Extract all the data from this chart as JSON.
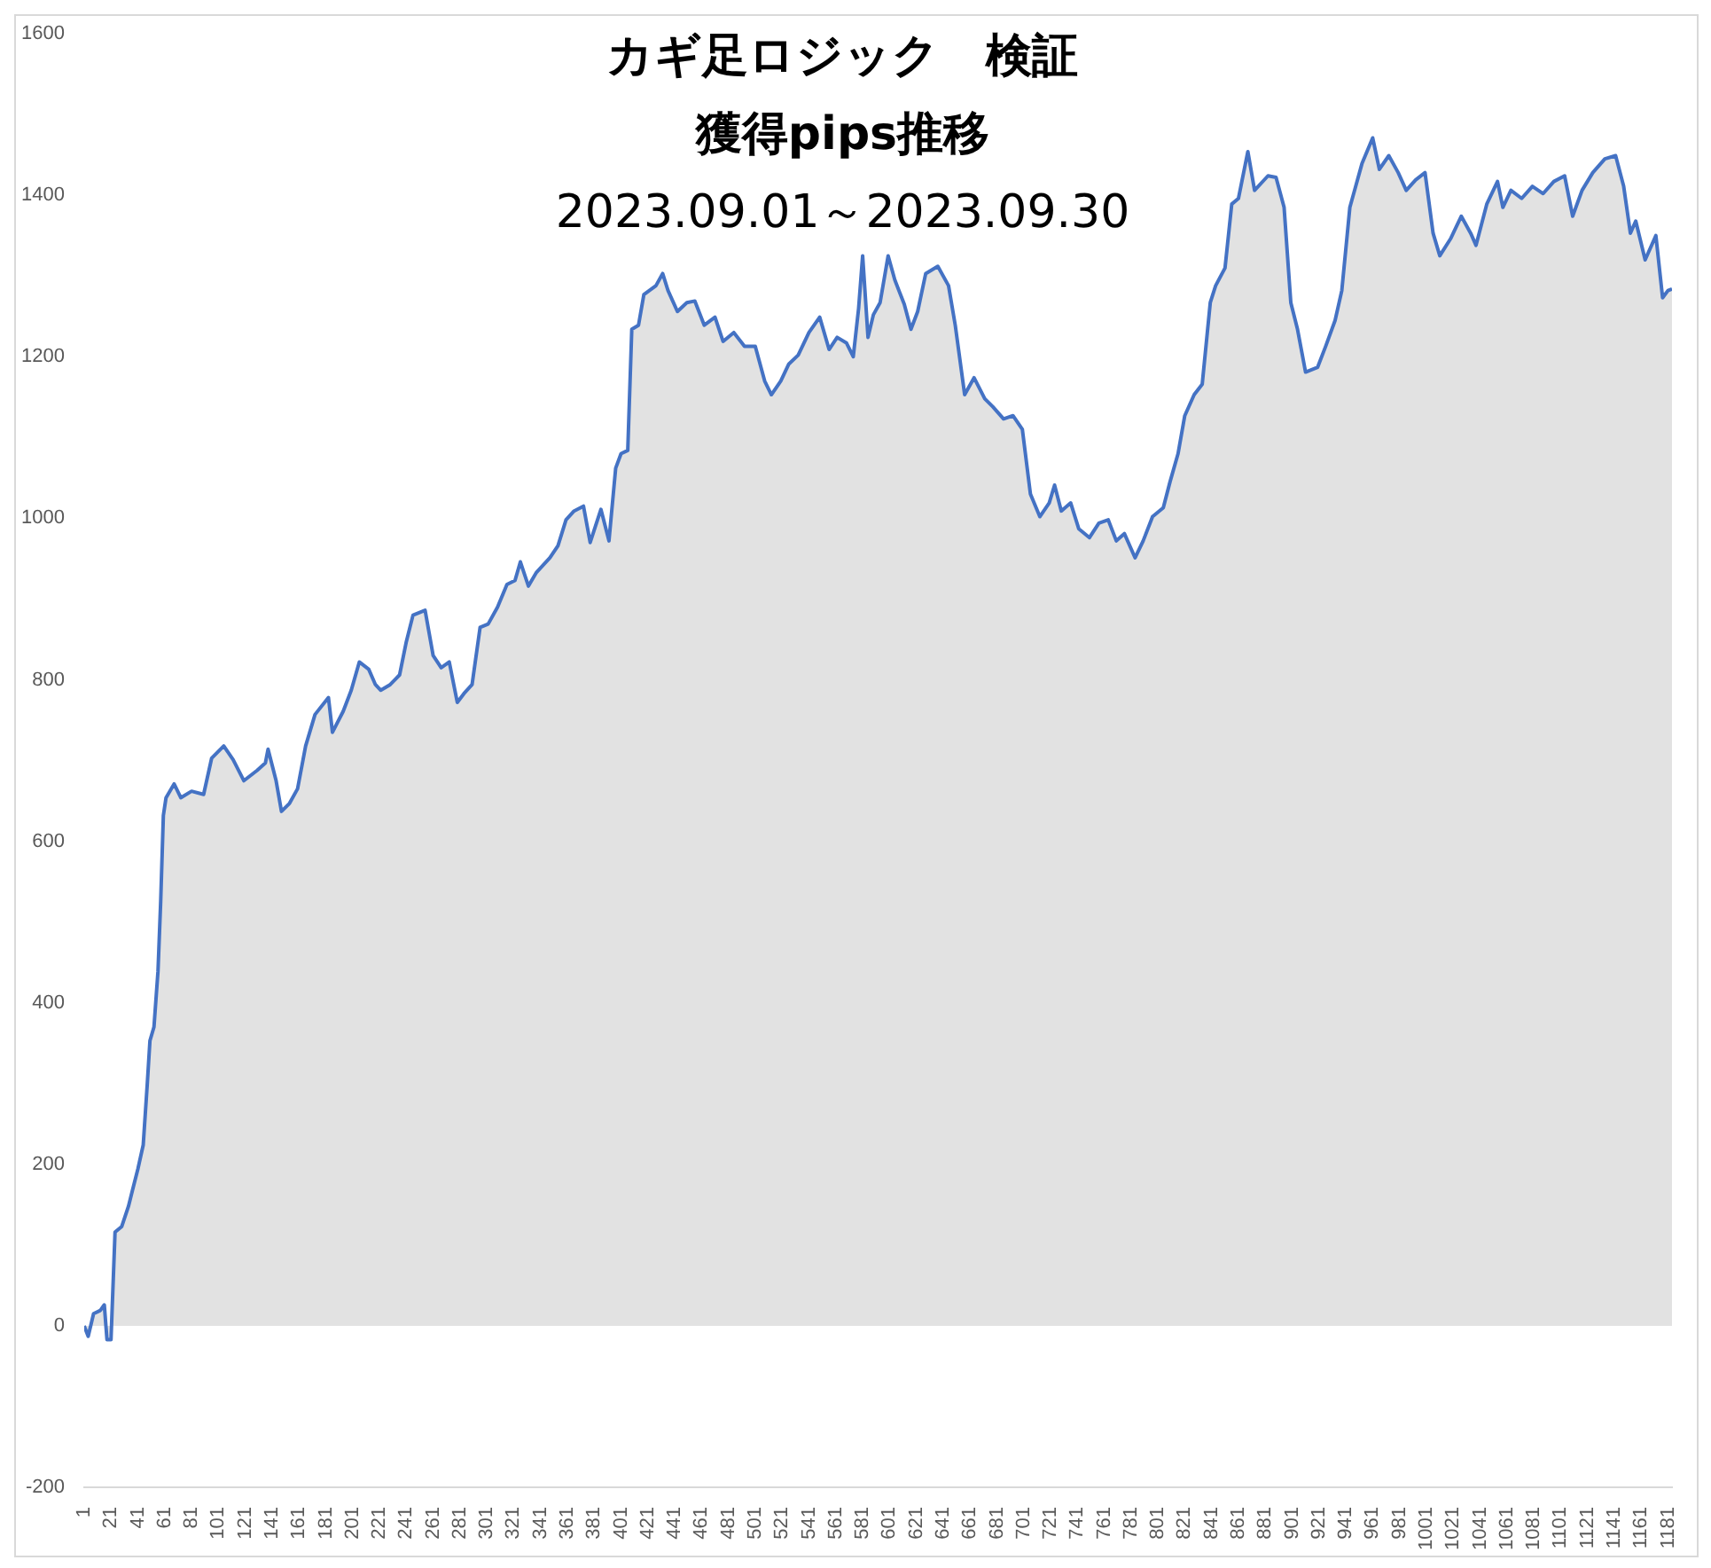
{
  "chart_data": {
    "type": "area",
    "title": "カギ足ロジック　検証",
    "subtitle": "獲得pips推移",
    "annotations": [
      "2023.09.01～2023.09.30"
    ],
    "xlim": [
      1,
      1184
    ],
    "xticks": [
      1,
      21,
      41,
      61,
      81,
      101,
      121,
      141,
      161,
      181,
      201,
      221,
      241,
      261,
      281,
      301,
      321,
      341,
      361,
      381,
      401,
      421,
      441,
      461,
      481,
      501,
      521,
      541,
      561,
      581,
      601,
      621,
      641,
      661,
      681,
      701,
      721,
      741,
      761,
      781,
      801,
      821,
      841,
      861,
      881,
      901,
      921,
      941,
      961,
      981,
      1001,
      1021,
      1041,
      1061,
      1081,
      1101,
      1121,
      1141,
      1161,
      1181
    ],
    "ylim": [
      -200,
      1600
    ],
    "yticks": [
      -200,
      0,
      200,
      400,
      600,
      800,
      1000,
      1200,
      1400,
      1600
    ],
    "grid": false,
    "legend": false,
    "series": [
      {
        "color": "#4472c4",
        "x": [
          1,
          4,
          8,
          13,
          16,
          18,
          21,
          24,
          29,
          34,
          37,
          41,
          45,
          48,
          50,
          53,
          56,
          58,
          60,
          62,
          68,
          73,
          81,
          90,
          96,
          105,
          112,
          120,
          130,
          136,
          138,
          144,
          148,
          154,
          160,
          166,
          173,
          183,
          186,
          194,
          200,
          206,
          213,
          218,
          222,
          229,
          236,
          241,
          246,
          255,
          261,
          267,
          273,
          279,
          284,
          290,
          296,
          302,
          309,
          316,
          322,
          326,
          332,
          338,
          348,
          354,
          360,
          366,
          373,
          378,
          386,
          392,
          397,
          401,
          406,
          409,
          414,
          418,
          427,
          432,
          436,
          443,
          450,
          456,
          463,
          471,
          477,
          485,
          493,
          501,
          508,
          513,
          520,
          526,
          533,
          541,
          549,
          556,
          562,
          569,
          574,
          578,
          581,
          585,
          589,
          594,
          600,
          605,
          612,
          617,
          622,
          628,
          637,
          645,
          650,
          657,
          664,
          672,
          678,
          686,
          693,
          700,
          706,
          713,
          720,
          724,
          729,
          736,
          742,
          750,
          757,
          764,
          770,
          776,
          784,
          790,
          797,
          805,
          810,
          816,
          821,
          828,
          834,
          840,
          844,
          851,
          856,
          861,
          868,
          873,
          883,
          889,
          895,
          900,
          905,
          911,
          920,
          926,
          933,
          938,
          944,
          953,
          961,
          966,
          973,
          980,
          986,
          993,
          1000,
          1006,
          1011,
          1019,
          1027,
          1034,
          1038,
          1046,
          1054,
          1058,
          1064,
          1072,
          1080,
          1088,
          1096,
          1104,
          1110,
          1117,
          1125,
          1134,
          1142,
          1148,
          1153,
          1157,
          1164,
          1172,
          1177,
          1181,
          1184
        ],
        "values": [
          0,
          -13,
          15,
          19,
          26,
          -17,
          -17,
          116,
          123,
          148,
          168,
          194,
          224,
          299,
          353,
          370,
          439,
          525,
          632,
          654,
          671,
          654,
          662,
          658,
          703,
          718,
          701,
          675,
          688,
          697,
          714,
          675,
          637,
          647,
          665,
          718,
          757,
          778,
          735,
          761,
          787,
          822,
          813,
          794,
          787,
          794,
          806,
          847,
          880,
          886,
          830,
          815,
          822,
          772,
          783,
          794,
          865,
          869,
          890,
          918,
          923,
          946,
          916,
          933,
          951,
          966,
          998,
          1009,
          1015,
          970,
          1011,
          972,
          1062,
          1080,
          1084,
          1234,
          1239,
          1277,
          1288,
          1303,
          1282,
          1256,
          1267,
          1269,
          1239,
          1249,
          1219,
          1230,
          1213,
          1213,
          1170,
          1153,
          1170,
          1191,
          1202,
          1230,
          1249,
          1209,
          1224,
          1217,
          1200,
          1260,
          1325,
          1224,
          1252,
          1267,
          1325,
          1295,
          1265,
          1234,
          1256,
          1303,
          1312,
          1288,
          1239,
          1153,
          1174,
          1148,
          1138,
          1123,
          1127,
          1110,
          1030,
          1002,
          1019,
          1041,
          1009,
          1019,
          987,
          976,
          994,
          998,
          972,
          981,
          951,
          972,
          1002,
          1013,
          1045,
          1080,
          1127,
          1153,
          1166,
          1267,
          1288,
          1310,
          1389,
          1396,
          1454,
          1406,
          1424,
          1422,
          1385,
          1267,
          1234,
          1181,
          1187,
          1213,
          1245,
          1282,
          1385,
          1439,
          1471,
          1432,
          1449,
          1428,
          1406,
          1419,
          1428,
          1353,
          1325,
          1346,
          1374,
          1353,
          1338,
          1389,
          1417,
          1385,
          1406,
          1396,
          1411,
          1402,
          1417,
          1424,
          1374,
          1406,
          1428,
          1445,
          1449,
          1411,
          1353,
          1368,
          1320,
          1350,
          1273,
          1282,
          1284
        ]
      }
    ]
  }
}
